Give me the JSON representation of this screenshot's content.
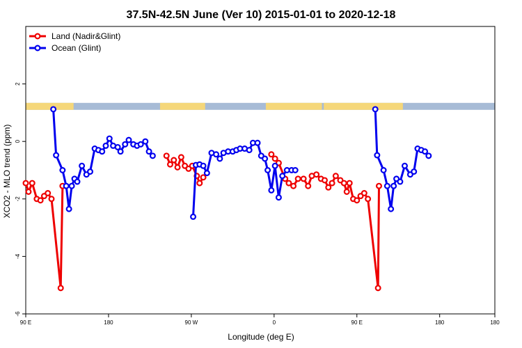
{
  "chart_data": {
    "type": "line",
    "title": "37.5N-42.5N June (Ver 10)   2015-01-01 to 2020-12-18",
    "xlabel": "Longitude (deg E)",
    "ylabel": "XCO2 - MLO trend (ppm)",
    "xlim": [
      90,
      600
    ],
    "ylim": [
      -6,
      4
    ],
    "x_ticks": [
      {
        "value": 90,
        "label": "90 E"
      },
      {
        "value": 180,
        "label": "180"
      },
      {
        "value": 270,
        "label": "90 W"
      },
      {
        "value": 360,
        "label": "0"
      },
      {
        "value": 450,
        "label": "90 E"
      },
      {
        "value": 540,
        "label": "180"
      }
    ],
    "y_ticks": [
      {
        "value": -6,
        "label": "-6"
      },
      {
        "value": -4,
        "label": "-4"
      },
      {
        "value": -2,
        "label": "-2"
      },
      {
        "value": 0,
        "label": "0"
      },
      {
        "value": 2,
        "label": "2"
      }
    ],
    "legend_position": "top-left",
    "land_ocean_bar": {
      "y_value": 1.22,
      "land_color": "#f5d77a",
      "ocean_color": "#a7bbd6",
      "land_segmented_ranges": [
        [
          90,
          142
        ],
        [
          236,
          285
        ],
        [
          351,
          412
        ],
        [
          414,
          500
        ]
      ]
    },
    "series": [
      {
        "name": "Land (Nadir&Glint)",
        "color": "#ee0000",
        "segments": [
          [
            [
              90,
              -1.45
            ],
            [
              93,
              -1.75
            ],
            [
              97,
              -1.45
            ],
            [
              102,
              -2.0
            ],
            [
              106,
              -2.05
            ],
            [
              110,
              -1.9
            ],
            [
              114,
              -1.8
            ],
            [
              118,
              -2.0
            ],
            [
              128,
              -5.1
            ],
            [
              130,
              -1.55
            ]
          ],
          [
            [
              243,
              -0.5
            ],
            [
              247,
              -0.8
            ],
            [
              251,
              -0.65
            ],
            [
              255,
              -0.9
            ],
            [
              259,
              -0.55
            ],
            [
              263,
              -0.85
            ],
            [
              267,
              -0.95
            ],
            [
              271,
              -0.85
            ],
            [
              276,
              -1.2
            ],
            [
              279,
              -1.45
            ],
            [
              283,
              -1.25
            ]
          ],
          [
            [
              357,
              -0.45
            ],
            [
              361,
              -0.6
            ],
            [
              365,
              -0.75
            ],
            [
              372,
              -1.3
            ],
            [
              376,
              -1.45
            ],
            [
              381,
              -1.55
            ],
            [
              386,
              -1.3
            ],
            [
              392,
              -1.3
            ],
            [
              397,
              -1.55
            ],
            [
              401,
              -1.2
            ],
            [
              406,
              -1.15
            ],
            [
              411,
              -1.3
            ],
            [
              415,
              -1.35
            ],
            [
              419,
              -1.6
            ],
            [
              423,
              -1.45
            ],
            [
              427,
              -1.2
            ],
            [
              432,
              -1.35
            ],
            [
              436,
              -1.45
            ],
            [
              439,
              -1.75
            ],
            [
              442,
              -1.45
            ],
            [
              446,
              -2.0
            ],
            [
              450,
              -2.05
            ],
            [
              454,
              -1.9
            ],
            [
              458,
              -1.8
            ],
            [
              462,
              -2.0
            ],
            [
              473,
              -5.1
            ],
            [
              474,
              -1.55
            ]
          ]
        ]
      },
      {
        "name": "Ocean (Glint)",
        "color": "#0000ee",
        "segments": [
          [
            [
              120,
              1.12
            ],
            [
              123,
              -0.48
            ],
            [
              130,
              -1.0
            ],
            [
              134,
              -1.55
            ],
            [
              137,
              -2.35
            ],
            [
              140,
              -1.55
            ],
            [
              143,
              -1.3
            ],
            [
              146,
              -1.4
            ],
            [
              151,
              -0.85
            ],
            [
              156,
              -1.15
            ],
            [
              160,
              -1.05
            ],
            [
              165,
              -0.25
            ],
            [
              169,
              -0.3
            ],
            [
              173,
              -0.35
            ],
            [
              177,
              -0.15
            ],
            [
              181,
              0.1
            ],
            [
              185,
              -0.15
            ],
            [
              190,
              -0.2
            ],
            [
              193,
              -0.35
            ],
            [
              198,
              -0.1
            ],
            [
              202,
              0.05
            ],
            [
              207,
              -0.1
            ],
            [
              211,
              -0.15
            ],
            [
              215,
              -0.1
            ],
            [
              220,
              0.0
            ],
            [
              224,
              -0.35
            ],
            [
              228,
              -0.5
            ]
          ],
          [
            [
              272,
              -2.62
            ],
            [
              275,
              -0.82
            ],
            [
              279,
              -0.8
            ],
            [
              283,
              -0.85
            ],
            [
              287,
              -1.1
            ],
            [
              292,
              -0.4
            ],
            [
              297,
              -0.45
            ],
            [
              301,
              -0.6
            ],
            [
              305,
              -0.4
            ],
            [
              310,
              -0.35
            ],
            [
              315,
              -0.35
            ],
            [
              319,
              -0.3
            ],
            [
              323,
              -0.25
            ],
            [
              328,
              -0.25
            ],
            [
              333,
              -0.3
            ],
            [
              337,
              -0.05
            ],
            [
              342,
              -0.05
            ],
            [
              346,
              -0.5
            ],
            [
              350,
              -0.6
            ],
            [
              353,
              -1.0
            ],
            [
              357,
              -1.7
            ],
            [
              361,
              -0.85
            ],
            [
              365,
              -1.95
            ],
            [
              369,
              -1.2
            ],
            [
              374,
              -1.0
            ],
            [
              379,
              -1.0
            ],
            [
              383,
              -1.0
            ]
          ],
          [
            [
              470,
              1.12
            ],
            [
              472,
              -0.48
            ],
            [
              479,
              -1.0
            ],
            [
              483,
              -1.55
            ],
            [
              487,
              -2.35
            ],
            [
              490,
              -1.55
            ],
            [
              493,
              -1.3
            ],
            [
              497,
              -1.4
            ],
            [
              502,
              -0.85
            ],
            [
              508,
              -1.15
            ],
            [
              512,
              -1.05
            ],
            [
              516,
              -0.25
            ],
            [
              520,
              -0.3
            ],
            [
              524,
              -0.35
            ],
            [
              528,
              -0.5
            ]
          ]
        ]
      }
    ]
  }
}
